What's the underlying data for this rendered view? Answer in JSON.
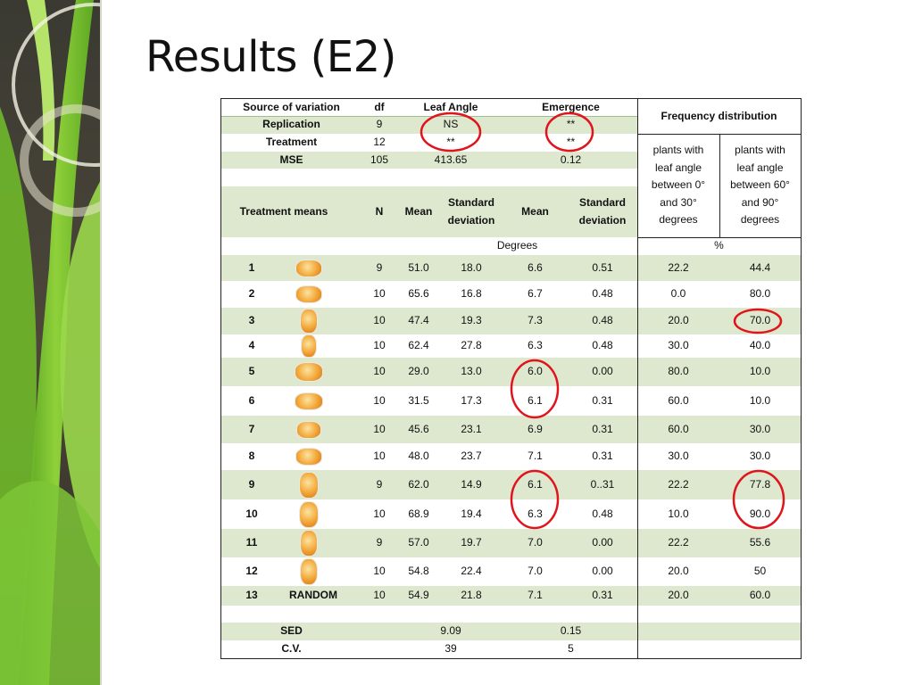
{
  "title": "Results (E2)",
  "anova": {
    "header": [
      "Source of variation",
      "df",
      "Leaf Angle",
      "Emergence"
    ],
    "rows": [
      [
        "Replication",
        "9",
        "NS",
        "**"
      ],
      [
        "Treatment",
        "12",
        "**",
        "**"
      ],
      [
        "MSE",
        "105",
        "413.65",
        "0.12"
      ]
    ]
  },
  "frequency": {
    "header": "Frequency distribution",
    "columns": [
      "plants with leaf angle between 0° and 30° degrees",
      "plants with leaf angle between 60° and 90° degrees"
    ]
  },
  "means_header": [
    "Treatment means",
    "N",
    "Mean",
    "Standard deviation",
    "Mean",
    "Standard deviation"
  ],
  "units": [
    "Degrees",
    "%"
  ],
  "treatments": [
    {
      "id": "1",
      "values": [
        "9",
        "51.0",
        "18.0",
        "6.6",
        "0.51",
        "22.2",
        "44.4"
      ]
    },
    {
      "id": "2",
      "values": [
        "10",
        "65.6",
        "16.8",
        "6.7",
        "0.48",
        "0.0",
        "80.0"
      ]
    },
    {
      "id": "3",
      "values": [
        "10",
        "47.4",
        "19.3",
        "7.3",
        "0.48",
        "20.0",
        "70.0"
      ]
    },
    {
      "id": "4",
      "values": [
        "10",
        "62.4",
        "27.8",
        "6.3",
        "0.48",
        "30.0",
        "40.0"
      ]
    },
    {
      "id": "5",
      "values": [
        "10",
        "29.0",
        "13.0",
        "6.0",
        "0.00",
        "80.0",
        "10.0"
      ]
    },
    {
      "id": "6",
      "values": [
        "10",
        "31.5",
        "17.3",
        "6.1",
        "0.31",
        "60.0",
        "10.0"
      ]
    },
    {
      "id": "7",
      "values": [
        "10",
        "45.6",
        "23.1",
        "6.9",
        "0.31",
        "60.0",
        "30.0"
      ]
    },
    {
      "id": "8",
      "values": [
        "10",
        "48.0",
        "23.7",
        "7.1",
        "0.31",
        "30.0",
        "30.0"
      ]
    },
    {
      "id": "9",
      "values": [
        "9",
        "62.0",
        "14.9",
        "6.1",
        "0..31",
        "22.2",
        "77.8"
      ]
    },
    {
      "id": "10",
      "values": [
        "10",
        "68.9",
        "19.4",
        "6.3",
        "0.48",
        "10.0",
        "90.0"
      ]
    },
    {
      "id": "11",
      "values": [
        "9",
        "57.0",
        "19.7",
        "7.0",
        "0.00",
        "22.2",
        "55.6"
      ]
    },
    {
      "id": "12",
      "values": [
        "10",
        "54.8",
        "22.4",
        "7.0",
        "0.00",
        "20.0",
        "50"
      ]
    },
    {
      "id": "13",
      "label": "RANDOM",
      "values": [
        "10",
        "54.9",
        "21.8",
        "7.1",
        "0.31",
        "20.0",
        "60.0"
      ]
    }
  ],
  "summary": [
    [
      "SED",
      "9.09",
      "0.15"
    ],
    [
      "C.V.",
      "39",
      "5"
    ]
  ]
}
